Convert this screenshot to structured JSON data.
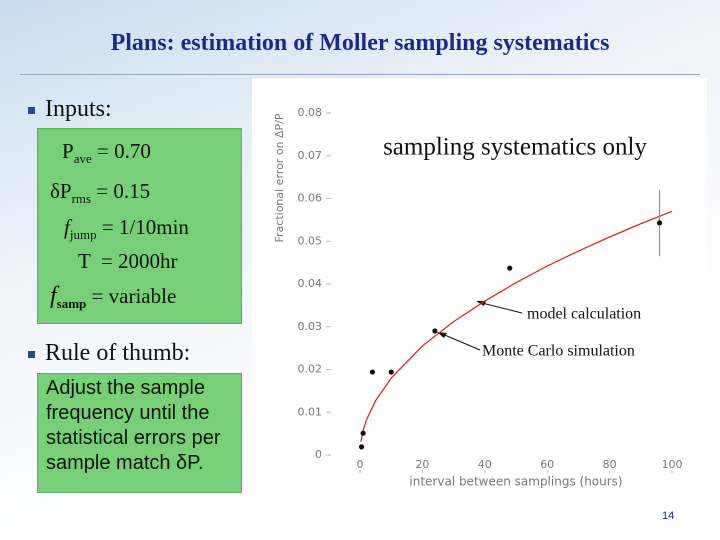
{
  "title": "Plans: estimation of Moller sampling systematics",
  "bullets": [
    "Inputs:",
    "Rule of thumb:"
  ],
  "inputs": [
    [
      "P",
      "ave",
      " = 0.70"
    ],
    [
      "δP",
      "rms",
      " = 0.15"
    ],
    [
      "f",
      "jump",
      " = 1/10min"
    ],
    [
      "T  = 2000hr"
    ],
    [
      "f",
      "samp",
      " = variable"
    ]
  ],
  "rule_of_thumb": "Adjust the sample frequency until the statistical errors per sample match δP.",
  "chart": {
    "type": "scatter",
    "y_label": "Fractional error on ΔP/P",
    "x_label": "interval between samplings (hours)",
    "annotations": [
      "sampling systematics only",
      "model calculation",
      "Monte Carlo simulation"
    ],
    "xlim": [
      0,
      100
    ],
    "ylim": [
      0,
      0.08
    ],
    "xticks": [
      0,
      20,
      40,
      60,
      80,
      100
    ],
    "yticks": [
      0,
      0.01,
      0.02,
      0.03,
      0.04,
      0.05,
      0.06,
      0.07,
      0.08
    ],
    "points": {
      "x": [
        0.5,
        1,
        4,
        10,
        24,
        48,
        96
      ],
      "y": [
        0.0019,
        0.0051,
        0.0194,
        0.0194,
        0.029,
        0.0437,
        0.0543
      ],
      "errors": [
        null,
        null,
        null,
        null,
        null,
        null,
        0.0078
      ],
      "color": "#111111"
    },
    "curve": {
      "x": [
        0.3,
        1,
        2,
        5,
        10,
        20,
        30,
        40,
        50,
        60,
        70,
        80,
        90,
        100
      ],
      "y": [
        0.0031,
        0.0057,
        0.0081,
        0.0127,
        0.018,
        0.0255,
        0.0312,
        0.036,
        0.0403,
        0.0442,
        0.0477,
        0.051,
        0.0541,
        0.057
      ],
      "color": "#d03020"
    }
  },
  "page_number": "14"
}
